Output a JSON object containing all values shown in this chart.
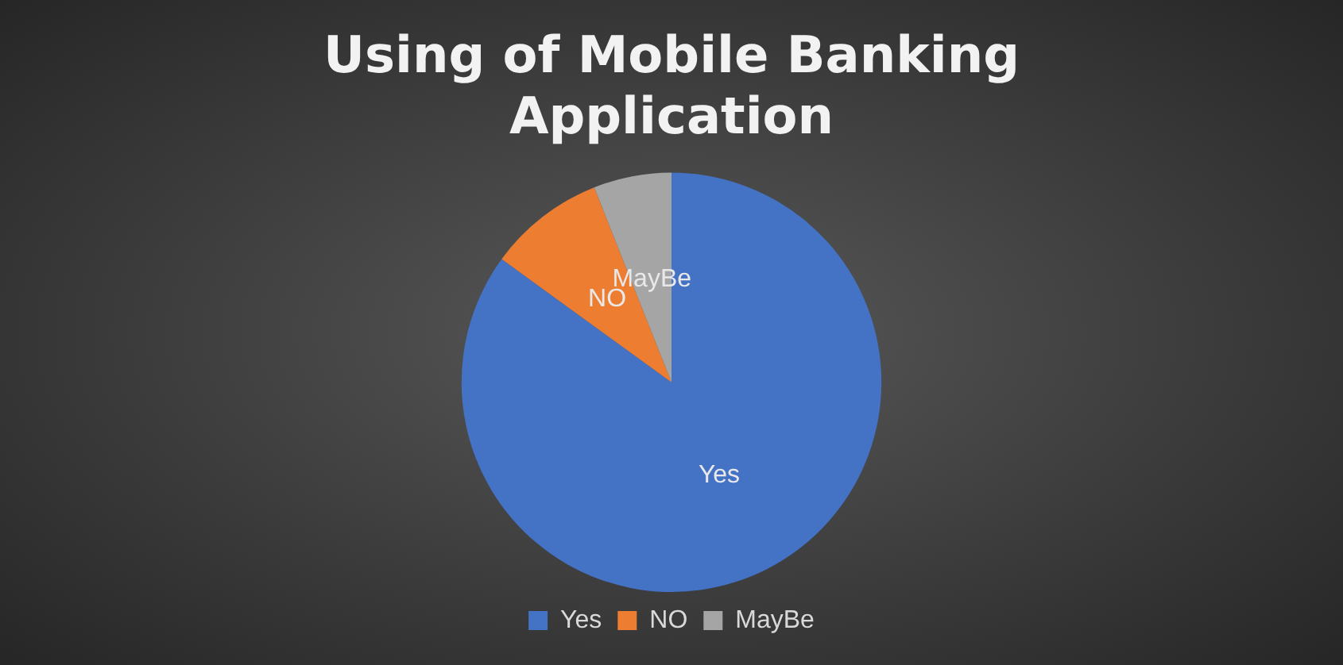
{
  "chart_data": {
    "type": "pie",
    "title": [
      "Using of Mobile Banking",
      "Application"
    ],
    "categories": [
      "Yes",
      "NO",
      "MayBe"
    ],
    "values": [
      85,
      9,
      6
    ],
    "colors": [
      "#4472c4",
      "#ed7d31",
      "#a5a5a5"
    ],
    "legend": "bottom"
  }
}
